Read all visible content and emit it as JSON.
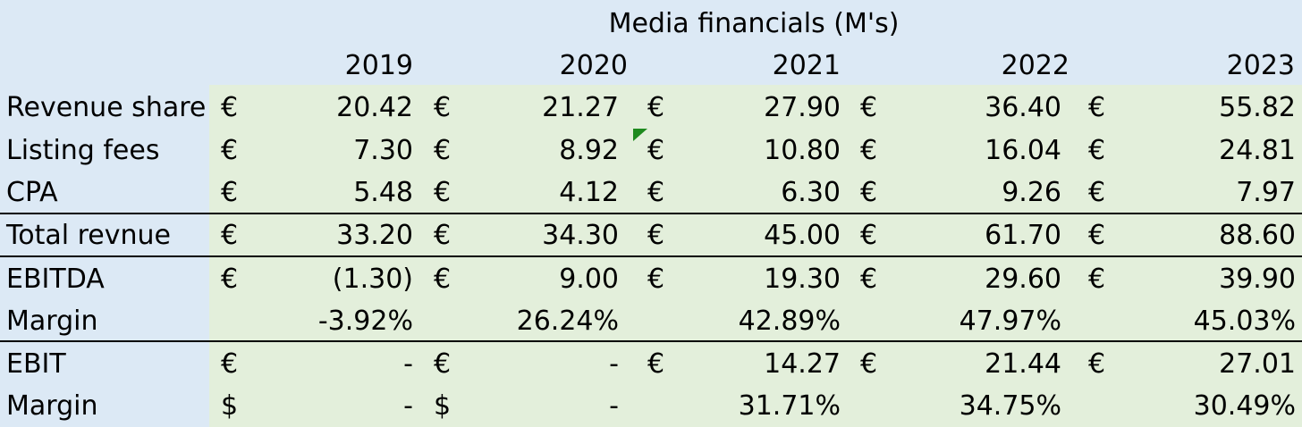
{
  "title": "Media financials (M's)",
  "years": [
    "2019",
    "2020",
    "2021",
    "2022",
    "2023"
  ],
  "rows": [
    {
      "label": "Revenue share",
      "cells": [
        {
          "c": "€",
          "v": "20.42"
        },
        {
          "c": "€",
          "v": "21.27"
        },
        {
          "c": "€",
          "v": "27.90"
        },
        {
          "c": "€",
          "v": "36.40"
        },
        {
          "c": "€",
          "v": "55.82"
        }
      ]
    },
    {
      "label": "Listing fees",
      "cells": [
        {
          "c": "€",
          "v": "7.30"
        },
        {
          "c": "€",
          "v": "8.92"
        },
        {
          "c": "€",
          "v": "10.80"
        },
        {
          "c": "€",
          "v": "16.04"
        },
        {
          "c": "€",
          "v": "24.81"
        }
      ]
    },
    {
      "label": "CPA",
      "cells": [
        {
          "c": "€",
          "v": "5.48"
        },
        {
          "c": "€",
          "v": "4.12"
        },
        {
          "c": "€",
          "v": "6.30"
        },
        {
          "c": "€",
          "v": "9.26"
        },
        {
          "c": "€",
          "v": "7.97"
        }
      ]
    },
    {
      "label": "Total revnue",
      "cells": [
        {
          "c": "€",
          "v": "33.20"
        },
        {
          "c": "€",
          "v": "34.30"
        },
        {
          "c": "€",
          "v": "45.00"
        },
        {
          "c": "€",
          "v": "61.70"
        },
        {
          "c": "€",
          "v": "88.60"
        }
      ]
    },
    {
      "label": "EBITDA",
      "cells": [
        {
          "c": "€",
          "v": "(1.30)"
        },
        {
          "c": "€",
          "v": "9.00"
        },
        {
          "c": "€",
          "v": "19.30"
        },
        {
          "c": "€",
          "v": "29.60"
        },
        {
          "c": "€",
          "v": "39.90"
        }
      ]
    },
    {
      "label": "Margin",
      "cells": [
        {
          "c": "",
          "v": "-3.92%"
        },
        {
          "c": "",
          "v": "26.24%"
        },
        {
          "c": "",
          "v": "42.89%"
        },
        {
          "c": "",
          "v": "47.97%"
        },
        {
          "c": "",
          "v": "45.03%"
        }
      ]
    },
    {
      "label": "EBIT",
      "cells": [
        {
          "c": "€",
          "v": "-"
        },
        {
          "c": "€",
          "v": "-"
        },
        {
          "c": "€",
          "v": "14.27"
        },
        {
          "c": "€",
          "v": "21.44"
        },
        {
          "c": "€",
          "v": "27.01"
        }
      ]
    },
    {
      "label": "Margin",
      "cells": [
        {
          "c": "$",
          "v": "-"
        },
        {
          "c": "$",
          "v": "-"
        },
        {
          "c": "",
          "v": "31.71%"
        },
        {
          "c": "",
          "v": "34.75%"
        },
        {
          "c": "",
          "v": "30.49%"
        }
      ]
    }
  ],
  "colors": {
    "header_bg": "#dce9f5",
    "data_bg": "#e3efdb",
    "comment_flag": "#1e8a1e"
  }
}
